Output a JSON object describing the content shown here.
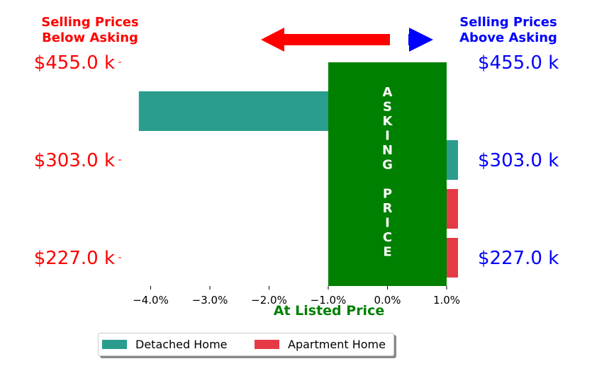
{
  "header": {
    "left_line1": "Selling Prices",
    "left_line2": "Below Asking",
    "right_line1": "Selling Prices",
    "right_line2": "Above Asking"
  },
  "colors": {
    "below": "#ff0000",
    "above": "#0000ff",
    "asking_box": "#008000",
    "detached": "#2a9d8f",
    "apartment": "#e63946"
  },
  "chart_data": {
    "type": "bar",
    "orientation": "horizontal",
    "xlim": [
      -4.5,
      1.2
    ],
    "x_ticks": [
      -4,
      -3,
      -2,
      -1,
      0,
      1
    ],
    "x_tick_labels": [
      "−4.0%",
      "−3.0%",
      "−2.0%",
      "−1.0%",
      "0.0%",
      "1.0%"
    ],
    "y_tick_labels_left": [
      "$455.0 k",
      "$303.0 k",
      "$227.0 k"
    ],
    "y_tick_labels_right": [
      "$455.0 k",
      "$303.0 k",
      "$227.0 k"
    ],
    "xlabel": "At Listed Price",
    "asking_box_label": "A\nS\nK\nI\nN\nG\n\nP\nR\nI\nC\nE",
    "asking_box_range": [
      -1.0,
      1.0
    ],
    "series": [
      {
        "name": "Detached Home",
        "bars": [
          {
            "level": "$455.0 k",
            "value": -4.2
          },
          {
            "level": "$303.0 k",
            "value": 1.2
          }
        ]
      },
      {
        "name": "Apartment Home",
        "bars": [
          {
            "level": "$303.0 k",
            "value": 1.2
          },
          {
            "level": "$227.0 k",
            "value": 1.2
          }
        ]
      }
    ],
    "legend_position": "bottom"
  }
}
